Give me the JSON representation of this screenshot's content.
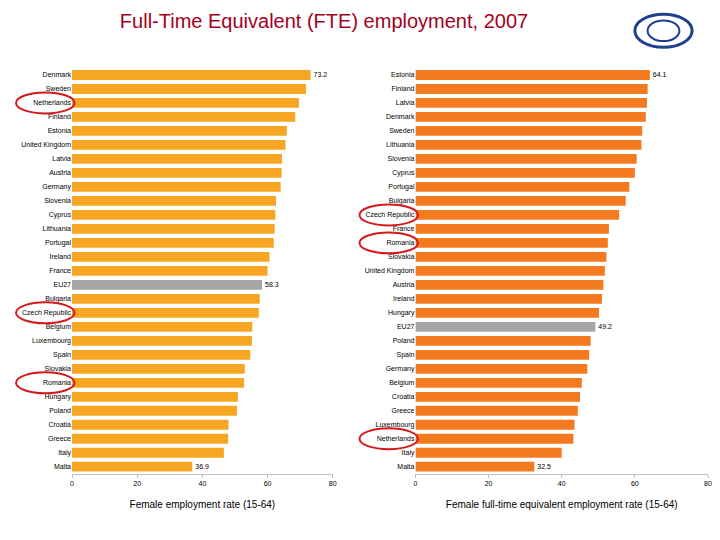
{
  "chart_data": [
    {
      "type": "bar",
      "orientation": "horizontal",
      "title": "Full-Time Equivalent (FTE) employment, 2007",
      "x_label": "Female employment rate (15-64)",
      "categories": [
        "Denmark",
        "Sweden",
        "Netherlands",
        "Finland",
        "Estonia",
        "United Kingdom",
        "Latvia",
        "Austria",
        "Germany",
        "Slovenia",
        "Cyprus",
        "Lithuania",
        "Portugal",
        "Ireland",
        "France",
        "EU27",
        "Bulgaria",
        "Czech Republic",
        "Belgium",
        "Luxembourg",
        "Spain",
        "Slovakia",
        "Romania",
        "Hungary",
        "Poland",
        "Croatia",
        "Greece",
        "Italy",
        "Malta"
      ],
      "values": [
        73.2,
        71.8,
        69.6,
        68.5,
        65.9,
        65.5,
        64.4,
        64.3,
        64.0,
        62.6,
        62.4,
        62.2,
        61.9,
        60.6,
        60.0,
        58.3,
        57.6,
        57.3,
        55.3,
        55.2,
        54.7,
        53.0,
        52.8,
        50.9,
        50.6,
        48.0,
        47.9,
        46.6,
        36.9
      ],
      "data_labels": true,
      "value_labels": [
        "73.2",
        null,
        null,
        null,
        null,
        null,
        null,
        null,
        null,
        null,
        null,
        null,
        null,
        null,
        null,
        "58.3",
        null,
        null,
        null,
        null,
        null,
        null,
        null,
        null,
        null,
        null,
        null,
        null,
        "36.9"
      ],
      "colors": [
        "#F6A623",
        "#F6A623",
        "#F6A623",
        "#F6A623",
        "#F6A623",
        "#F6A623",
        "#F6A623",
        "#F6A623",
        "#F6A623",
        "#F6A623",
        "#F6A623",
        "#F6A623",
        "#F6A623",
        "#F6A623",
        "#F6A623",
        "#A6A6A6",
        "#F6A623",
        "#F6A623",
        "#F6A623",
        "#F6A623",
        "#F6A623",
        "#F6A623",
        "#F6A623",
        "#F6A623",
        "#F6A623",
        "#F6A623",
        "#F6A623",
        "#F6A623",
        "#F6A623"
      ],
      "highlighted": [
        "Netherlands",
        "Czech Republic",
        "Romania"
      ],
      "xlim": [
        0,
        80
      ],
      "xticks": [
        0,
        20,
        40,
        60,
        80
      ],
      "grid": false
    },
    {
      "type": "bar",
      "orientation": "horizontal",
      "x_label": "Female full-time equivalent employment rate (15-64)",
      "categories": [
        "Estonia",
        "Finland",
        "Latvia",
        "Denmark",
        "Sweden",
        "Lithuania",
        "Slovenia",
        "Cyprus",
        "Portugal",
        "Bulgaria",
        "Czech Republic",
        "France",
        "Romania",
        "Slovakia",
        "United Kingdom",
        "Austria",
        "Ireland",
        "Hungary",
        "EU27",
        "Poland",
        "Spain",
        "Germany",
        "Belgium",
        "Croatia",
        "Greece",
        "Luxembourg",
        "Netherlands",
        "Italy",
        "Malta"
      ],
      "values": [
        64.1,
        63.5,
        63.3,
        63.0,
        62.0,
        61.8,
        60.5,
        60.0,
        58.5,
        57.5,
        55.7,
        52.9,
        52.6,
        52.2,
        51.8,
        51.4,
        51.0,
        50.2,
        49.2,
        47.9,
        47.5,
        47.0,
        45.5,
        45.0,
        44.4,
        43.5,
        43.2,
        40.0,
        32.5
      ],
      "data_labels": true,
      "value_labels": [
        "64.1",
        null,
        null,
        null,
        null,
        null,
        null,
        null,
        null,
        null,
        null,
        null,
        null,
        null,
        null,
        null,
        null,
        null,
        "49.2",
        null,
        null,
        null,
        null,
        null,
        null,
        null,
        null,
        null,
        "32.5"
      ],
      "colors": [
        "#F47A20",
        "#F47A20",
        "#F47A20",
        "#F47A20",
        "#F47A20",
        "#F47A20",
        "#F47A20",
        "#F47A20",
        "#F47A20",
        "#F47A20",
        "#F47A20",
        "#F47A20",
        "#F47A20",
        "#F47A20",
        "#F47A20",
        "#F47A20",
        "#F47A20",
        "#F47A20",
        "#A6A6A6",
        "#F47A20",
        "#F47A20",
        "#F47A20",
        "#F47A20",
        "#F47A20",
        "#F47A20",
        "#F47A20",
        "#F47A20",
        "#F47A20",
        "#F47A20"
      ],
      "highlighted": [
        "Czech Republic",
        "Romania",
        "Netherlands"
      ],
      "xlim": [
        0,
        80
      ],
      "xticks": [
        0,
        20,
        40,
        60,
        80
      ],
      "grid": false
    }
  ]
}
